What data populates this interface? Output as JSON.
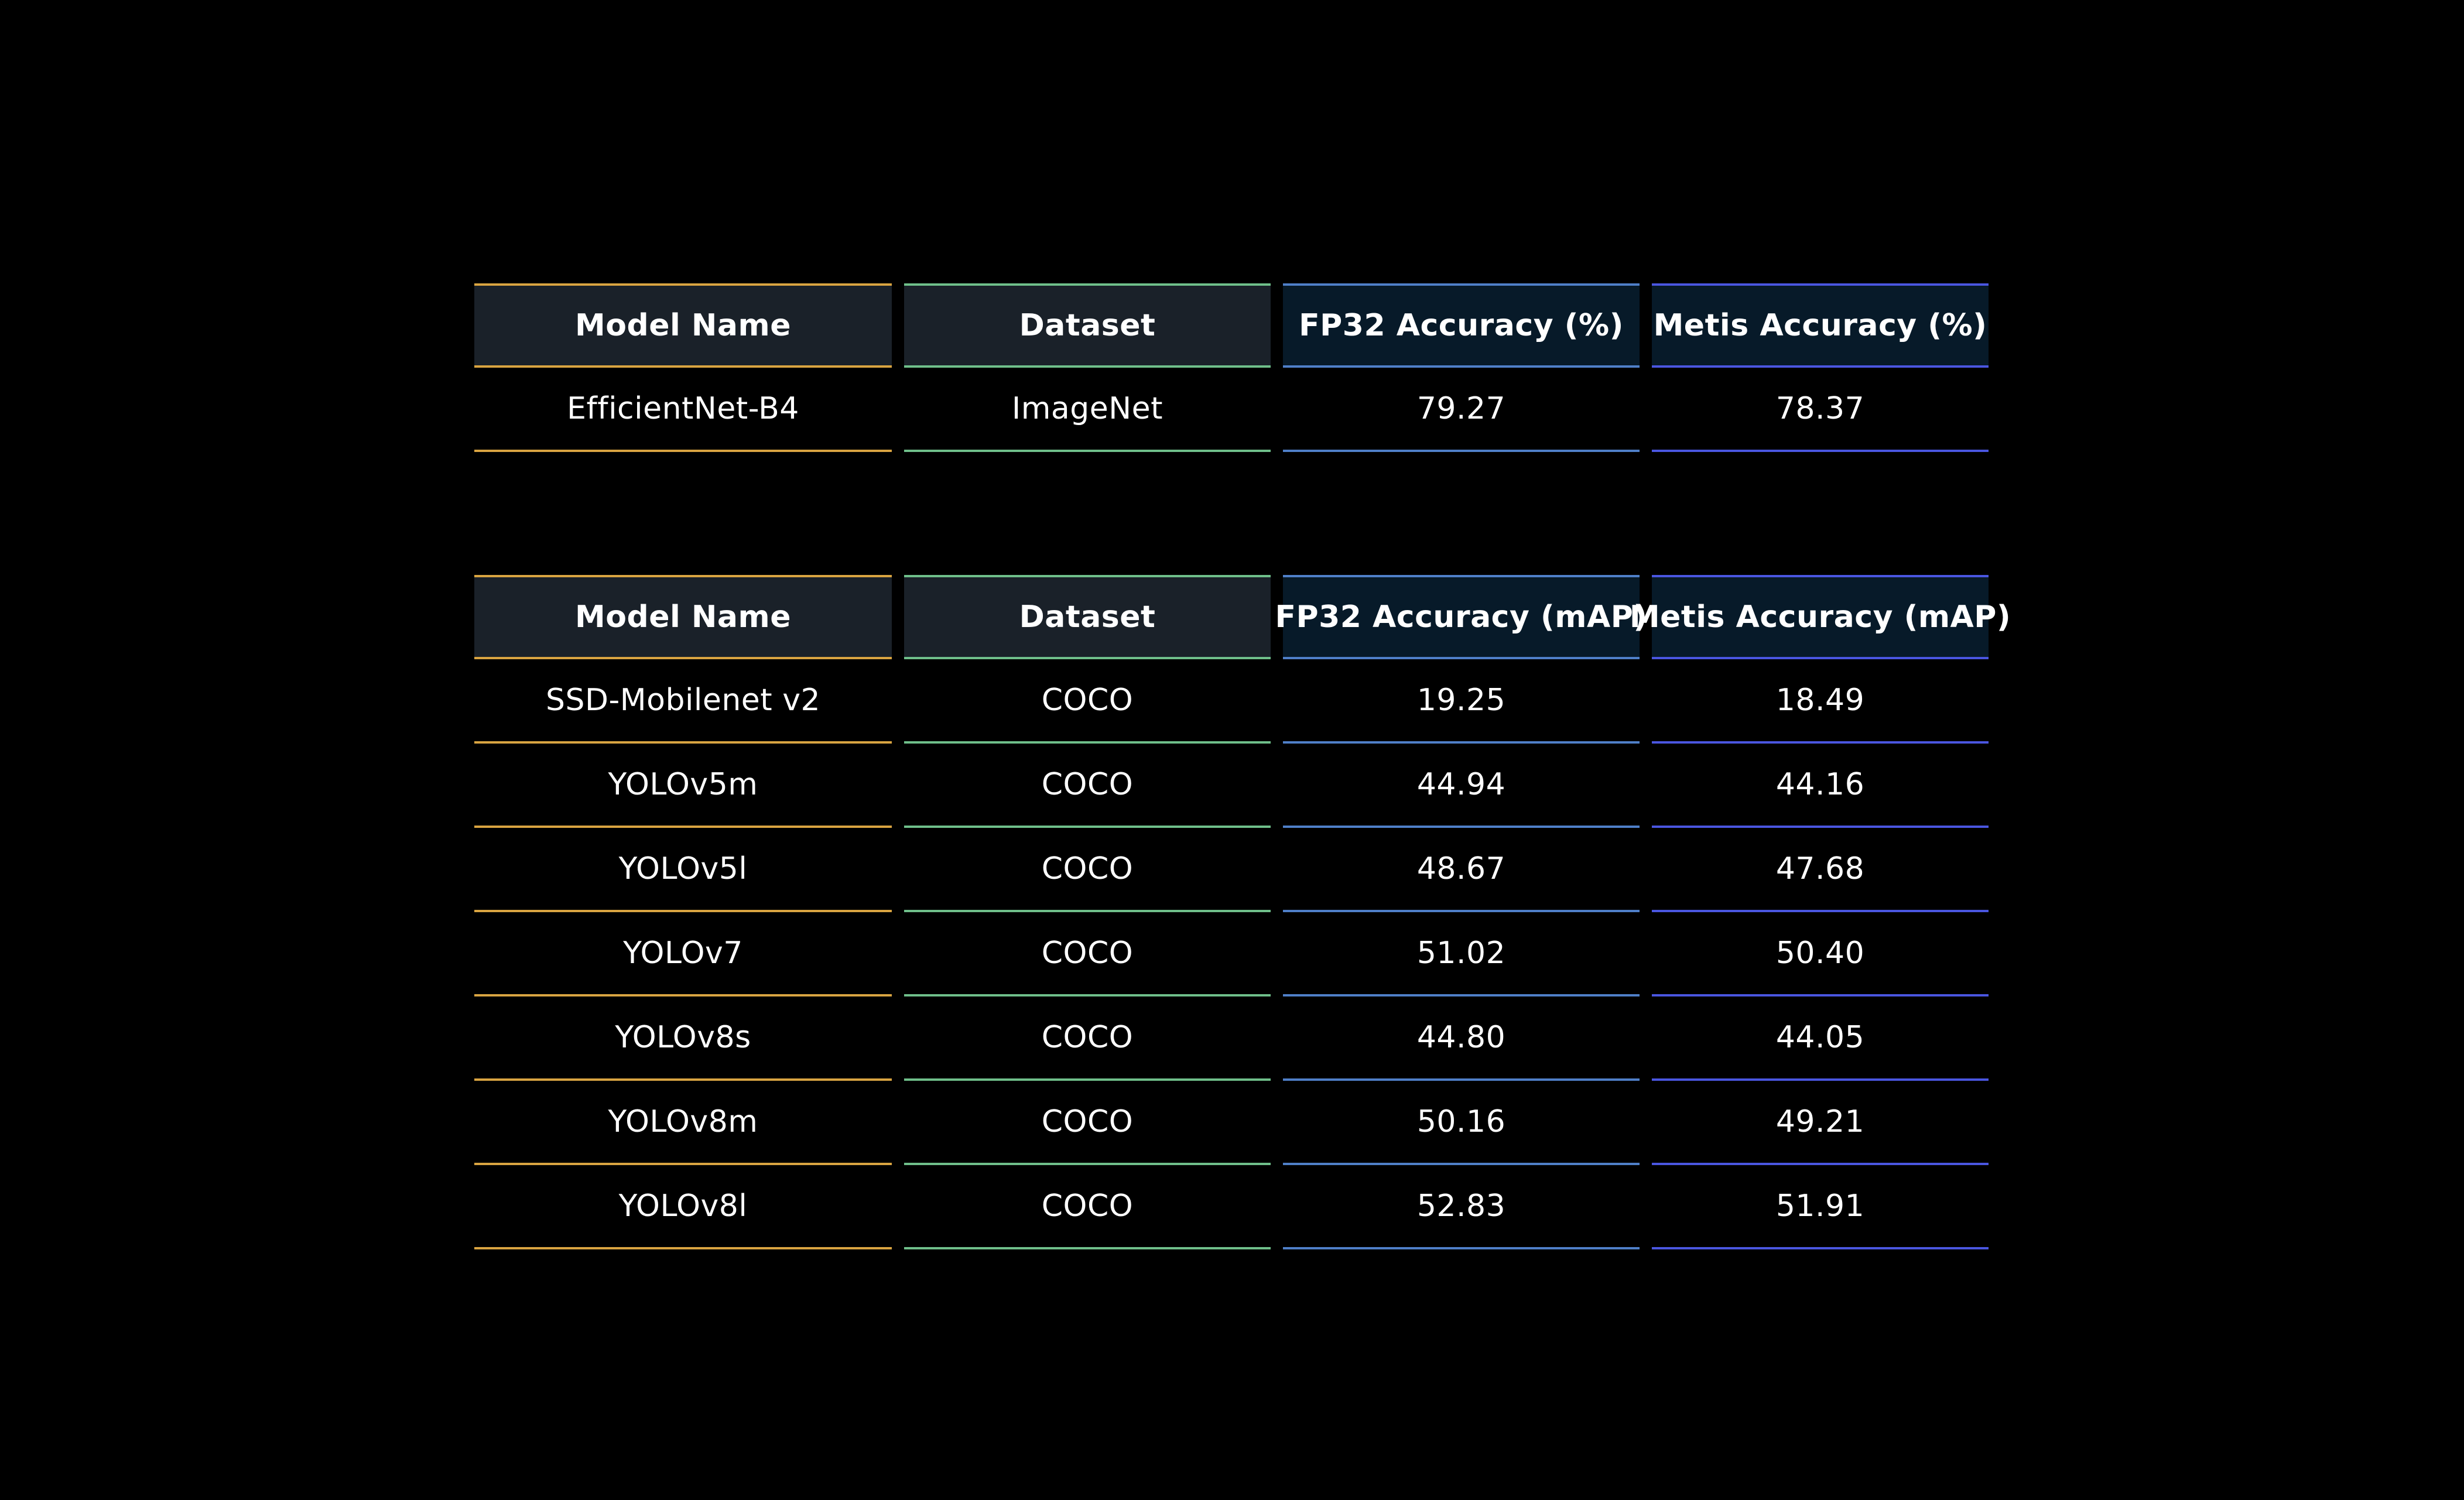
{
  "colors": {
    "orange": "#d9a441",
    "green": "#6fbf8a",
    "blue": "#4f7fc8",
    "indigo": "#4a56e0",
    "header_bg_left": "#1a2129",
    "header_bg_right": "#071a29"
  },
  "chart_data": [
    {
      "type": "table",
      "columns": [
        "Model Name",
        "Dataset",
        "FP32 Accuracy (%)",
        "Metis Accuracy (%)"
      ],
      "rows": [
        [
          "EfficientNet-B4",
          "ImageNet",
          "79.27",
          "78.37"
        ]
      ]
    },
    {
      "type": "table",
      "columns": [
        "Model Name",
        "Dataset",
        "FP32 Accuracy (mAP)",
        "Metis Accuracy (mAP)"
      ],
      "rows": [
        [
          "SSD-Mobilenet v2",
          "COCO",
          "19.25",
          "18.49"
        ],
        [
          "YOLOv5m",
          "COCO",
          "44.94",
          "44.16"
        ],
        [
          "YOLOv5l",
          "COCO",
          "48.67",
          "47.68"
        ],
        [
          "YOLOv7",
          "COCO",
          "51.02",
          "50.40"
        ],
        [
          "YOLOv8s",
          "COCO",
          "44.80",
          "44.05"
        ],
        [
          "YOLOv8m",
          "COCO",
          "50.16",
          "49.21"
        ],
        [
          "YOLOv8l",
          "COCO",
          "52.83",
          "51.91"
        ]
      ]
    }
  ]
}
